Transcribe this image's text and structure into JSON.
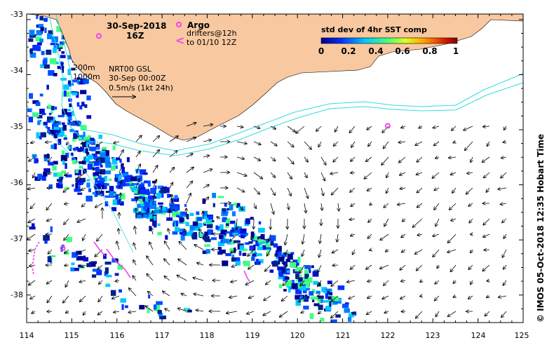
{
  "title": {
    "date": "30-Sep-2018",
    "time": "16Z"
  },
  "argo_label": "Argo",
  "drifters": {
    "line1": "drifters@12h",
    "line2": "to 01/10 12Z"
  },
  "isobaths": {
    "label_200": "200m",
    "label_1000": "1000m"
  },
  "current_info": {
    "line1": "NRT00 GSL",
    "line2": "30-Sep 00:00Z",
    "line3": "0.5m/s (1kt 24h)"
  },
  "colorbar": {
    "title": "std dev of 4hr SST comp",
    "tick_labels": [
      "0",
      "0.2",
      "0.4",
      "0.6",
      "0.8",
      "1"
    ]
  },
  "axes": {
    "x_ticks": [
      "114",
      "115",
      "116",
      "117",
      "118",
      "119",
      "120",
      "121",
      "122",
      "123",
      "124",
      "125"
    ],
    "y_ticks": [
      "-33",
      "-34",
      "-35",
      "-36",
      "-37",
      "-38"
    ],
    "lon_range": [
      114,
      125
    ],
    "lat_range": [
      -38.5,
      -33
    ]
  },
  "credit": "© IMOS 05-Oct-2018 12:35 Hobart Time",
  "colors": {
    "land": "#f8c8a0",
    "isobath": "#33dddd",
    "argo": "#ee44ee",
    "drifter": "#ee44ee",
    "sst_low": "#0000aa",
    "sst_high": "#aa0000"
  },
  "argo_floats": [
    {
      "lon": 122.0,
      "lat": -34.93
    },
    {
      "lon": 114.8,
      "lat": -37.15
    },
    {
      "lon": 115.6,
      "lat": -33.3
    }
  ]
}
